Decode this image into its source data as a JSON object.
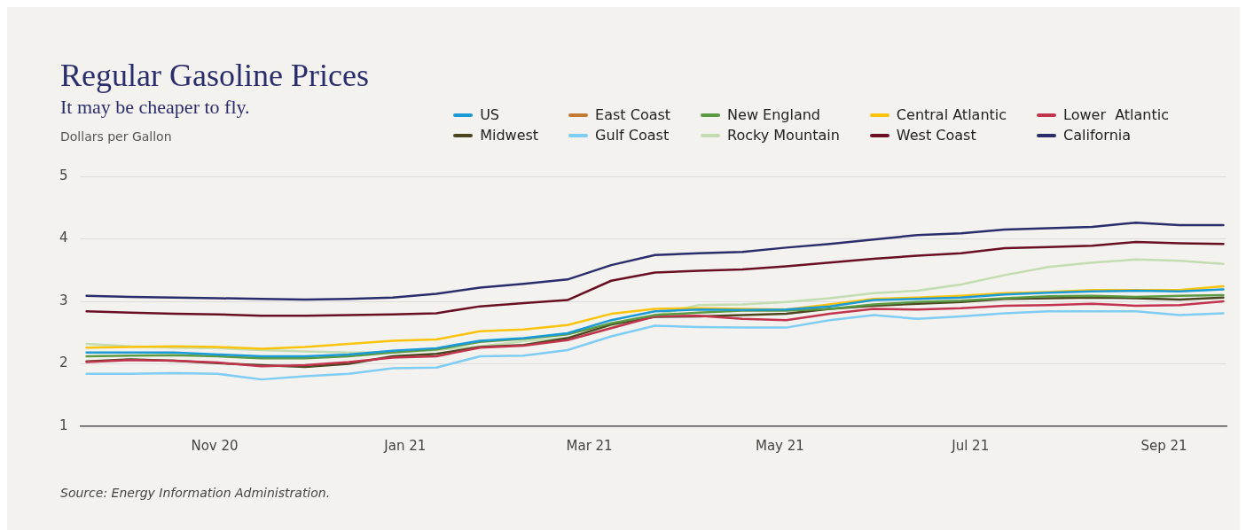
{
  "chart_data": {
    "type": "line",
    "title": "Regular Gasoline Prices",
    "subtitle": "It may be cheaper to fly.",
    "ylabel": "Dollars per Gallon",
    "x": [
      "2020-09-21",
      "2020-10-05",
      "2020-10-19",
      "2020-11-02",
      "2020-11-16",
      "2020-11-30",
      "2020-12-14",
      "2020-12-28",
      "2021-01-11",
      "2021-01-25",
      "2021-02-08",
      "2021-02-22",
      "2021-03-08",
      "2021-03-22",
      "2021-04-05",
      "2021-04-19",
      "2021-05-03",
      "2021-05-17",
      "2021-05-31",
      "2021-06-14",
      "2021-06-28",
      "2021-07-12",
      "2021-07-26",
      "2021-08-09",
      "2021-08-23",
      "2021-09-06",
      "2021-09-20"
    ],
    "series": [
      {
        "name": "US",
        "color": "#1a9ad6",
        "values": [
          2.18,
          2.18,
          2.18,
          2.15,
          2.12,
          2.12,
          2.15,
          2.21,
          2.25,
          2.37,
          2.41,
          2.49,
          2.7,
          2.84,
          2.87,
          2.86,
          2.87,
          2.92,
          3.02,
          3.04,
          3.06,
          3.11,
          3.14,
          3.16,
          3.17,
          3.16,
          3.19
        ]
      },
      {
        "name": "East Coast",
        "color": "#c47a30",
        "values": [
          null,
          null,
          null,
          null,
          null,
          null,
          null,
          null,
          null,
          null,
          null,
          null,
          null,
          null,
          null,
          null,
          null,
          null,
          null,
          null,
          null,
          null,
          null,
          null,
          null,
          null,
          null
        ]
      },
      {
        "name": "New England",
        "color": "#5a9a43",
        "values": [
          2.12,
          2.13,
          2.14,
          2.12,
          2.09,
          2.09,
          2.12,
          2.18,
          2.23,
          2.35,
          2.4,
          2.47,
          2.65,
          2.78,
          2.82,
          2.85,
          2.85,
          2.88,
          2.95,
          2.99,
          3.01,
          3.05,
          3.08,
          3.09,
          3.07,
          3.09,
          3.1
        ]
      },
      {
        "name": "Central Atlantic",
        "color": "#fcc30b",
        "values": [
          2.26,
          2.27,
          2.28,
          2.27,
          2.24,
          2.27,
          2.32,
          2.37,
          2.39,
          2.52,
          2.55,
          2.62,
          2.8,
          2.88,
          2.89,
          2.88,
          2.87,
          2.95,
          3.04,
          3.06,
          3.09,
          3.13,
          3.15,
          3.18,
          3.18,
          3.18,
          3.24
        ]
      },
      {
        "name": "Lower  Atlantic",
        "color": "#c2334d",
        "values": [
          2.03,
          2.06,
          2.05,
          2.02,
          1.96,
          1.98,
          2.03,
          2.1,
          2.12,
          2.26,
          2.29,
          2.38,
          2.57,
          2.76,
          2.77,
          2.72,
          2.7,
          2.8,
          2.88,
          2.87,
          2.89,
          2.93,
          2.94,
          2.96,
          2.93,
          2.94,
          3.0
        ]
      },
      {
        "name": "Midwest",
        "color": "#4b4520",
        "values": [
          2.04,
          2.07,
          2.05,
          2.01,
          1.98,
          1.95,
          2.0,
          2.12,
          2.16,
          2.27,
          2.3,
          2.41,
          2.63,
          2.75,
          2.76,
          2.78,
          2.8,
          2.88,
          2.93,
          2.96,
          2.99,
          3.04,
          3.05,
          3.06,
          3.05,
          3.03,
          3.06
        ]
      },
      {
        "name": "Gulf Coast",
        "color": "#7fcdf4",
        "values": [
          1.84,
          1.84,
          1.85,
          1.84,
          1.75,
          1.8,
          1.84,
          1.93,
          1.94,
          2.12,
          2.13,
          2.22,
          2.44,
          2.61,
          2.59,
          2.58,
          2.58,
          2.7,
          2.78,
          2.72,
          2.76,
          2.81,
          2.84,
          2.84,
          2.84,
          2.78,
          2.81
        ]
      },
      {
        "name": "Rocky Mountain",
        "color": "#c3dcb0",
        "values": [
          2.32,
          2.28,
          2.26,
          2.25,
          2.22,
          2.2,
          2.18,
          2.18,
          2.22,
          2.28,
          2.36,
          2.42,
          2.6,
          2.78,
          2.94,
          2.95,
          2.99,
          3.05,
          3.13,
          3.17,
          3.27,
          3.42,
          3.55,
          3.62,
          3.67,
          3.65,
          3.6
        ]
      },
      {
        "name": "West Coast",
        "color": "#6a0f22",
        "values": [
          2.84,
          2.82,
          2.8,
          2.79,
          2.77,
          2.77,
          2.78,
          2.79,
          2.81,
          2.92,
          2.97,
          3.02,
          3.33,
          3.46,
          3.49,
          3.51,
          3.56,
          3.62,
          3.68,
          3.73,
          3.77,
          3.85,
          3.87,
          3.89,
          3.95,
          3.93,
          3.92
        ]
      },
      {
        "name": "California",
        "color": "#2a2d6b",
        "values": [
          3.09,
          3.07,
          3.06,
          3.05,
          3.04,
          3.03,
          3.04,
          3.06,
          3.12,
          3.22,
          3.28,
          3.35,
          3.58,
          3.74,
          3.77,
          3.79,
          3.86,
          3.92,
          3.99,
          4.06,
          4.09,
          4.15,
          4.17,
          4.19,
          4.26,
          4.22,
          4.22
        ]
      }
    ],
    "xlim": [
      "2020-09-19",
      "2021-09-21"
    ],
    "xticks": [
      {
        "value": "2020-11-01",
        "label": "Nov 20"
      },
      {
        "value": "2021-01-01",
        "label": "Jan 21"
      },
      {
        "value": "2021-03-01",
        "label": "Mar 21"
      },
      {
        "value": "2021-05-01",
        "label": "May 21"
      },
      {
        "value": "2021-07-01",
        "label": "Jul 21"
      },
      {
        "value": "2021-09-01",
        "label": "Sep 21"
      }
    ],
    "ylim": [
      1,
      5
    ],
    "yticks": [
      1,
      2,
      3,
      4,
      5
    ],
    "grid": "y",
    "legend": "top right",
    "marker": "none",
    "line_style": "solid",
    "annotations": [
      "Source: Energy Information Administration."
    ]
  }
}
